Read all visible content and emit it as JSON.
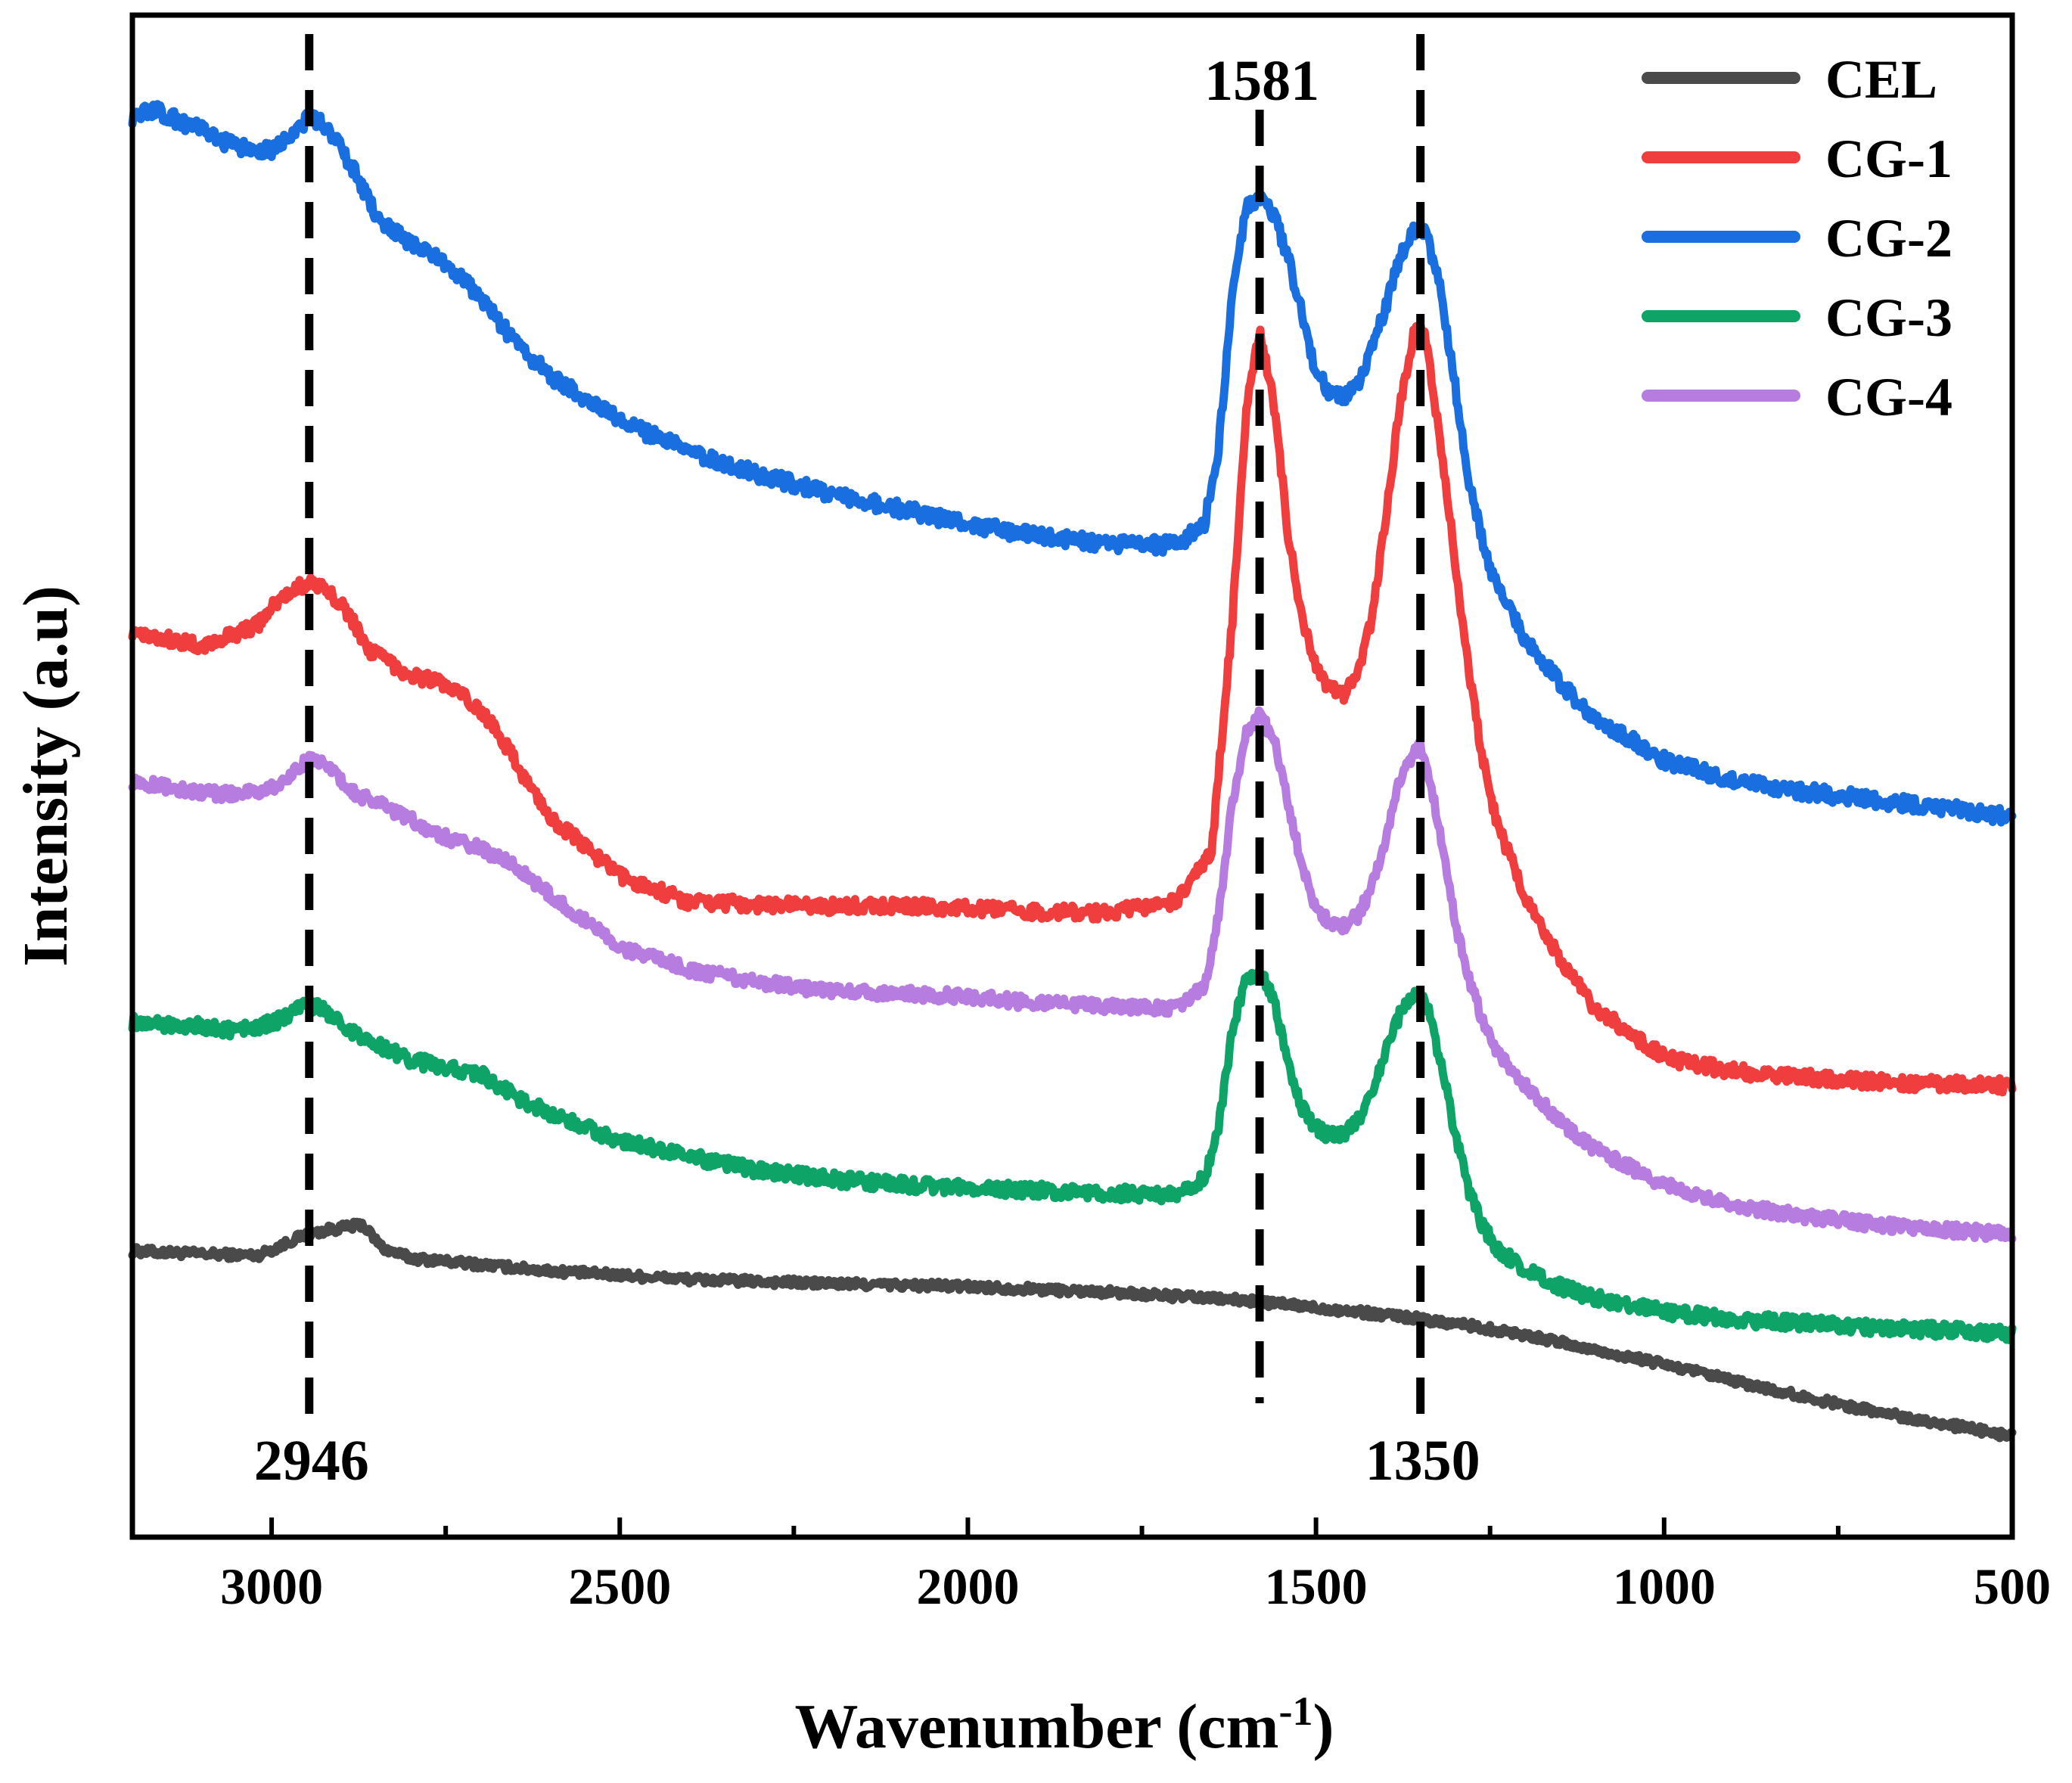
{
  "chart_data": {
    "type": "line",
    "title": "",
    "xlabel": "Wavenumber (cm",
    "xlabel_superscript": "-1",
    "xlabel_close": ")",
    "ylabel": "Intensity (a.u)",
    "xlim": [
      3200,
      500
    ],
    "x_reversed": true,
    "x_ticks": [
      3000,
      2500,
      2000,
      1500,
      1000,
      500
    ],
    "x_tick_labels": [
      "3000",
      "2500",
      "2000",
      "1500",
      "1000",
      "500"
    ],
    "x_minor_ticks": [
      2750,
      2250,
      1750,
      1250,
      750
    ],
    "ylim": [
      0,
      100
    ],
    "y_ticks_shown": false,
    "grid": false,
    "legend_position": "top-right",
    "annotations": [
      {
        "label": "2946",
        "x": 2946,
        "label_position": "bottom"
      },
      {
        "label": "1581",
        "x": 1581,
        "label_position": "top"
      },
      {
        "label": "1350",
        "x": 1350,
        "label_position": "bottom"
      }
    ],
    "series": [
      {
        "name": "CEL",
        "color": "#4a4a4a",
        "noise": 0.3,
        "x": [
          3200,
          3100,
          3020,
          2990,
          2960,
          2920,
          2890,
          2870,
          2840,
          2800,
          2600,
          2400,
          2200,
          2000,
          1800,
          1600,
          1500,
          1400,
          1300,
          1200,
          1100,
          1000,
          900,
          800,
          700,
          600,
          500
        ],
        "y": [
          15.3,
          15.1,
          15.0,
          15.6,
          16.3,
          16.8,
          17.0,
          17.2,
          15.5,
          14.8,
          13.9,
          13.3,
          13.0,
          12.8,
          12.4,
          11.8,
          11.3,
          10.8,
          10.2,
          9.4,
          8.3,
          7.3,
          6.1,
          5.0,
          4.0,
          3.1,
          2.2
        ]
      },
      {
        "name": "CG-1",
        "color": "#f03e3e",
        "noise": 0.5,
        "x": [
          3200,
          3100,
          3020,
          2990,
          2946,
          2900,
          2860,
          2800,
          2760,
          2720,
          2680,
          2640,
          2600,
          2500,
          2400,
          2300,
          2200,
          2100,
          2000,
          1900,
          1800,
          1700,
          1650,
          1620,
          1600,
          1581,
          1560,
          1540,
          1520,
          1500,
          1480,
          1460,
          1440,
          1420,
          1400,
          1380,
          1360,
          1350,
          1340,
          1320,
          1300,
          1280,
          1260,
          1240,
          1200,
          1150,
          1100,
          1000,
          900,
          800,
          700,
          600,
          500
        ],
        "y": [
          59.2,
          58.0,
          59.6,
          61.3,
          62.7,
          61.2,
          57.8,
          56.0,
          55.6,
          54.3,
          52.5,
          49.0,
          46.0,
          41.8,
          40.0,
          39.8,
          39.7,
          39.7,
          39.5,
          39.3,
          39.2,
          40.0,
          43.5,
          60.0,
          75.0,
          80.5,
          75.0,
          66.0,
          60.0,
          56.5,
          55.0,
          54.6,
          56.0,
          60.0,
          67.0,
          75.0,
          80.0,
          81.0,
          79.0,
          72.0,
          64.0,
          56.0,
          50.0,
          45.5,
          40.5,
          36.0,
          32.5,
          29.0,
          28.0,
          27.6,
          27.3,
          27.1,
          27.0
        ]
      },
      {
        "name": "CG-2",
        "color": "#1a6fe0",
        "noise": 0.55,
        "x": [
          3200,
          3170,
          3100,
          3050,
          3000,
          2980,
          2946,
          2920,
          2880,
          2850,
          2800,
          2750,
          2700,
          2650,
          2600,
          2500,
          2400,
          2300,
          2200,
          2100,
          2000,
          1900,
          1800,
          1700,
          1660,
          1640,
          1620,
          1600,
          1581,
          1560,
          1540,
          1520,
          1500,
          1480,
          1460,
          1440,
          1420,
          1400,
          1380,
          1360,
          1350,
          1340,
          1320,
          1300,
          1280,
          1250,
          1200,
          1150,
          1100,
          1000,
          900,
          800,
          700,
          600,
          500
        ],
        "y": [
          95.5,
          96.0,
          94.5,
          93.3,
          93.2,
          94.0,
          95.4,
          94.8,
          91.5,
          88.5,
          86.5,
          85.2,
          82.7,
          79.5,
          77.2,
          74.0,
          71.8,
          70.2,
          68.9,
          67.8,
          66.7,
          65.8,
          65.3,
          65.2,
          66.8,
          72.0,
          83.0,
          89.0,
          90.0,
          88.5,
          85.5,
          81.5,
          77.5,
          76.0,
          75.5,
          76.5,
          79.0,
          82.0,
          85.5,
          87.5,
          87.8,
          87.0,
          83.0,
          76.5,
          69.5,
          63.5,
          58.5,
          55.5,
          53.0,
          50.0,
          48.5,
          47.8,
          47.2,
          46.6,
          46.0
        ]
      },
      {
        "name": "CG-3",
        "color": "#0ea468",
        "noise": 0.5,
        "x": [
          3200,
          3100,
          3050,
          3000,
          2960,
          2946,
          2920,
          2880,
          2840,
          2800,
          2760,
          2700,
          2650,
          2600,
          2500,
          2400,
          2300,
          2200,
          2100,
          2000,
          1900,
          1800,
          1700,
          1660,
          1640,
          1620,
          1600,
          1581,
          1560,
          1540,
          1520,
          1500,
          1480,
          1460,
          1440,
          1420,
          1400,
          1380,
          1360,
          1350,
          1340,
          1320,
          1300,
          1280,
          1260,
          1240,
          1200,
          1150,
          1100,
          1000,
          900,
          800,
          700,
          600,
          500
        ],
        "y": [
          31.5,
          31.2,
          30.9,
          31.4,
          32.4,
          32.7,
          32.2,
          30.6,
          29.7,
          28.8,
          28.4,
          27.8,
          26.2,
          25.0,
          23.1,
          22.0,
          21.0,
          20.4,
          20.0,
          19.8,
          19.6,
          19.4,
          19.3,
          20.5,
          24.0,
          31.0,
          34.5,
          35.0,
          33.0,
          28.5,
          25.5,
          24.0,
          23.5,
          23.5,
          24.5,
          26.5,
          29.5,
          32.0,
          33.2,
          33.5,
          32.5,
          28.5,
          23.5,
          19.5,
          17.0,
          15.5,
          14.0,
          12.8,
          12.0,
          11.0,
          10.5,
          10.2,
          9.9,
          9.7,
          9.5
        ]
      },
      {
        "name": "CG-4",
        "color": "#b77ce0",
        "noise": 0.45,
        "x": [
          3200,
          3100,
          3050,
          3000,
          2960,
          2946,
          2920,
          2880,
          2840,
          2800,
          2760,
          2700,
          2650,
          2600,
          2500,
          2400,
          2300,
          2200,
          2100,
          2000,
          1900,
          1800,
          1700,
          1660,
          1640,
          1620,
          1600,
          1581,
          1560,
          1540,
          1520,
          1500,
          1480,
          1460,
          1440,
          1420,
          1400,
          1380,
          1360,
          1350,
          1340,
          1320,
          1300,
          1280,
          1260,
          1240,
          1200,
          1150,
          1100,
          1000,
          900,
          800,
          700,
          600,
          500
        ],
        "y": [
          48.5,
          47.7,
          47.6,
          48.0,
          49.6,
          50.2,
          49.6,
          47.6,
          46.8,
          45.8,
          44.7,
          43.8,
          42.5,
          40.5,
          36.8,
          35.2,
          34.3,
          33.7,
          33.5,
          33.3,
          32.8,
          32.6,
          32.5,
          34.0,
          39.0,
          47.0,
          52.0,
          53.2,
          51.5,
          47.0,
          42.5,
          39.5,
          38.5,
          38.3,
          39.0,
          41.0,
          44.5,
          48.5,
          50.5,
          51.0,
          49.5,
          44.5,
          38.5,
          34.5,
          31.5,
          29.5,
          27.0,
          24.5,
          22.5,
          20.0,
          18.5,
          17.8,
          17.2,
          16.8,
          16.5
        ]
      }
    ]
  }
}
